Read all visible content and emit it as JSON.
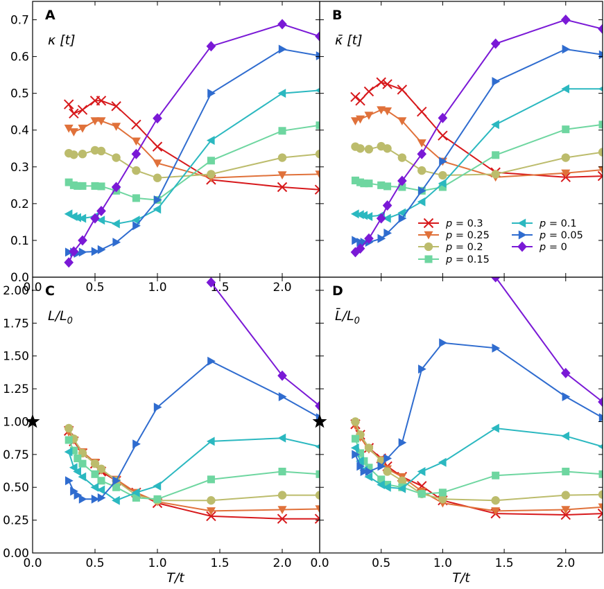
{
  "figure": {
    "xlabel": "T/t",
    "legend": {
      "placement": "lower-right of panel B",
      "entries": [
        "p = 0.3",
        "p = 0.25",
        "p = 0.2",
        "p = 0.15",
        "p = 0.1",
        "p = 0.05",
        "p = 0"
      ]
    }
  },
  "chart_data": [
    {
      "panel": "A",
      "type": "line",
      "ylabel": "κ [t]",
      "xlim": [
        0,
        2.3
      ],
      "ylim": [
        0,
        0.75
      ],
      "xticks": [
        "0.0",
        "0.5",
        "1.0",
        "1.5",
        "2.0"
      ],
      "yticks": [
        "0.0",
        "0.1",
        "0.2",
        "0.3",
        "0.4",
        "0.5",
        "0.6",
        "0.7"
      ],
      "series": [
        {
          "name": "p = 0.3",
          "color": "#d7191c",
          "marker": "x",
          "x": [
            0.29,
            0.33,
            0.4,
            0.5,
            0.55,
            0.67,
            0.83,
            1.0,
            1.43,
            2.0,
            2.3
          ],
          "y": [
            0.47,
            0.445,
            0.455,
            0.48,
            0.48,
            0.465,
            0.415,
            0.355,
            0.265,
            0.245,
            0.238
          ]
        },
        {
          "name": "p = 0.25",
          "color": "#e0713a",
          "marker": "v",
          "x": [
            0.29,
            0.33,
            0.4,
            0.5,
            0.55,
            0.67,
            0.83,
            1.0,
            1.43,
            2.0,
            2.3
          ],
          "y": [
            0.405,
            0.395,
            0.405,
            0.425,
            0.425,
            0.41,
            0.37,
            0.31,
            0.27,
            0.278,
            0.28
          ]
        },
        {
          "name": "p = 0.2",
          "color": "#bcbc6c",
          "marker": "o",
          "x": [
            0.29,
            0.33,
            0.4,
            0.5,
            0.55,
            0.67,
            0.83,
            1.0,
            1.43,
            2.0,
            2.3
          ],
          "y": [
            0.337,
            0.333,
            0.335,
            0.345,
            0.343,
            0.325,
            0.29,
            0.27,
            0.28,
            0.325,
            0.335
          ]
        },
        {
          "name": "p = 0.15",
          "color": "#6ed6a0",
          "marker": "s",
          "x": [
            0.29,
            0.33,
            0.36,
            0.4,
            0.5,
            0.55,
            0.67,
            0.83,
            1.0,
            1.43,
            2.0,
            2.3
          ],
          "y": [
            0.258,
            0.25,
            0.248,
            0.248,
            0.248,
            0.247,
            0.235,
            0.215,
            0.21,
            0.317,
            0.398,
            0.413
          ]
        },
        {
          "name": "p = 0.1",
          "color": "#2bb8c0",
          "marker": "<",
          "x": [
            0.29,
            0.33,
            0.36,
            0.4,
            0.5,
            0.55,
            0.67,
            0.83,
            1.0,
            1.43,
            2.0,
            2.3
          ],
          "y": [
            0.172,
            0.165,
            0.162,
            0.16,
            0.165,
            0.155,
            0.145,
            0.155,
            0.185,
            0.372,
            0.5,
            0.508
          ]
        },
        {
          "name": "p = 0.05",
          "color": "#2f6ccf",
          "marker": ">",
          "x": [
            0.29,
            0.33,
            0.36,
            0.4,
            0.5,
            0.55,
            0.67,
            0.83,
            1.0,
            1.43,
            2.0,
            2.3
          ],
          "y": [
            0.068,
            0.068,
            0.065,
            0.068,
            0.07,
            0.075,
            0.095,
            0.14,
            0.21,
            0.5,
            0.62,
            0.602
          ]
        },
        {
          "name": "p = 0",
          "color": "#7a19d6",
          "marker": "D",
          "x": [
            0.29,
            0.33,
            0.4,
            0.5,
            0.55,
            0.67,
            0.83,
            1.0,
            1.43,
            2.0,
            2.3
          ],
          "y": [
            0.04,
            0.07,
            0.1,
            0.16,
            0.18,
            0.245,
            0.335,
            0.432,
            0.628,
            0.688,
            0.655
          ]
        }
      ]
    },
    {
      "panel": "B",
      "type": "line",
      "ylabel": "κ̄ [t]",
      "xlim": [
        0,
        2.3
      ],
      "ylim": [
        0,
        0.75
      ],
      "xticks": [],
      "yticks": [],
      "series": [
        {
          "name": "p = 0.3",
          "color": "#d7191c",
          "marker": "x",
          "x": [
            0.29,
            0.33,
            0.4,
            0.5,
            0.55,
            0.67,
            0.83,
            1.0,
            1.43,
            2.0,
            2.3
          ],
          "y": [
            0.49,
            0.48,
            0.505,
            0.53,
            0.525,
            0.51,
            0.45,
            0.385,
            0.285,
            0.272,
            0.275
          ]
        },
        {
          "name": "p = 0.25",
          "color": "#e0713a",
          "marker": "v",
          "x": [
            0.29,
            0.33,
            0.4,
            0.5,
            0.55,
            0.67,
            0.83,
            1.0,
            1.43,
            2.0,
            2.3
          ],
          "y": [
            0.425,
            0.43,
            0.44,
            0.455,
            0.452,
            0.425,
            0.365,
            0.315,
            0.272,
            0.283,
            0.292
          ]
        },
        {
          "name": "p = 0.2",
          "color": "#bcbc6c",
          "marker": "o",
          "x": [
            0.29,
            0.33,
            0.4,
            0.5,
            0.55,
            0.67,
            0.83,
            1.0,
            1.43,
            2.0,
            2.3
          ],
          "y": [
            0.355,
            0.35,
            0.348,
            0.356,
            0.35,
            0.325,
            0.29,
            0.277,
            0.28,
            0.325,
            0.34
          ]
        },
        {
          "name": "p = 0.15",
          "color": "#6ed6a0",
          "marker": "s",
          "x": [
            0.29,
            0.33,
            0.36,
            0.4,
            0.5,
            0.55,
            0.67,
            0.83,
            1.0,
            1.43,
            2.0,
            2.3
          ],
          "y": [
            0.263,
            0.258,
            0.255,
            0.255,
            0.25,
            0.247,
            0.245,
            0.235,
            0.245,
            0.332,
            0.402,
            0.415
          ]
        },
        {
          "name": "p = 0.1",
          "color": "#2bb8c0",
          "marker": "<",
          "x": [
            0.29,
            0.33,
            0.36,
            0.4,
            0.5,
            0.55,
            0.67,
            0.83,
            1.0,
            1.43,
            2.0,
            2.3
          ],
          "y": [
            0.172,
            0.17,
            0.168,
            0.165,
            0.168,
            0.16,
            0.175,
            0.205,
            0.255,
            0.415,
            0.512,
            0.512
          ]
        },
        {
          "name": "p = 0.05",
          "color": "#2f6ccf",
          "marker": ">",
          "x": [
            0.29,
            0.33,
            0.36,
            0.4,
            0.5,
            0.55,
            0.67,
            0.83,
            1.0,
            1.43,
            2.0,
            2.3
          ],
          "y": [
            0.1,
            0.095,
            0.095,
            0.095,
            0.105,
            0.12,
            0.16,
            0.235,
            0.315,
            0.532,
            0.62,
            0.605
          ]
        },
        {
          "name": "p = 0",
          "color": "#7a19d6",
          "marker": "D",
          "x": [
            0.29,
            0.33,
            0.4,
            0.5,
            0.55,
            0.67,
            0.83,
            1.0,
            1.43,
            2.0,
            2.3
          ],
          "y": [
            0.068,
            0.078,
            0.105,
            0.16,
            0.195,
            0.262,
            0.335,
            0.433,
            0.635,
            0.7,
            0.675
          ]
        }
      ]
    },
    {
      "panel": "C",
      "type": "line",
      "ylabel": "L/L0",
      "xlim": [
        0,
        2.3
      ],
      "ylim": [
        0,
        2.1
      ],
      "xticks": [
        "0.0",
        "0.5",
        "1.0",
        "1.5",
        "2.0"
      ],
      "yticks": [
        "0.00",
        "0.25",
        "0.50",
        "0.75",
        "1.00",
        "1.25",
        "1.50",
        "1.75",
        "2.00"
      ],
      "reference_point": {
        "x": 0,
        "y": 1.0,
        "marker": "star"
      },
      "series": [
        {
          "name": "p = 0.3",
          "color": "#d7191c",
          "marker": "x",
          "x": [
            0.29,
            0.33,
            0.4,
            0.5,
            0.55,
            0.67,
            0.83,
            1.0,
            1.43,
            2.0,
            2.3
          ],
          "y": [
            0.93,
            0.85,
            0.76,
            0.68,
            0.62,
            0.55,
            0.46,
            0.38,
            0.28,
            0.26,
            0.26
          ]
        },
        {
          "name": "p = 0.25",
          "color": "#e0713a",
          "marker": "v",
          "x": [
            0.29,
            0.33,
            0.4,
            0.5,
            0.55,
            0.67,
            0.83,
            1.0,
            1.43,
            2.0,
            2.3
          ],
          "y": [
            0.92,
            0.86,
            0.77,
            0.69,
            0.63,
            0.56,
            0.46,
            0.39,
            0.32,
            0.33,
            0.335
          ]
        },
        {
          "name": "p = 0.2",
          "color": "#bcbc6c",
          "marker": "o",
          "x": [
            0.29,
            0.33,
            0.4,
            0.5,
            0.55,
            0.67,
            0.83,
            1.0,
            1.43,
            2.0,
            2.3
          ],
          "y": [
            0.95,
            0.87,
            0.76,
            0.68,
            0.64,
            0.55,
            0.44,
            0.4,
            0.4,
            0.44,
            0.44
          ]
        },
        {
          "name": "p = 0.15",
          "color": "#6ed6a0",
          "marker": "s",
          "x": [
            0.29,
            0.33,
            0.36,
            0.4,
            0.5,
            0.55,
            0.67,
            0.83,
            1.0,
            1.43,
            2.0,
            2.3
          ],
          "y": [
            0.86,
            0.78,
            0.72,
            0.68,
            0.6,
            0.55,
            0.5,
            0.42,
            0.41,
            0.56,
            0.62,
            0.6
          ]
        },
        {
          "name": "p = 0.1",
          "color": "#2bb8c0",
          "marker": "<",
          "x": [
            0.29,
            0.33,
            0.36,
            0.4,
            0.5,
            0.55,
            0.67,
            0.83,
            1.0,
            1.43,
            2.0,
            2.3
          ],
          "y": [
            0.77,
            0.65,
            0.62,
            0.58,
            0.5,
            0.48,
            0.4,
            0.46,
            0.51,
            0.85,
            0.875,
            0.81
          ]
        },
        {
          "name": "p = 0.05",
          "color": "#2f6ccf",
          "marker": ">",
          "x": [
            0.29,
            0.33,
            0.36,
            0.4,
            0.5,
            0.55,
            0.67,
            0.83,
            1.0,
            1.43,
            2.0,
            2.3
          ],
          "y": [
            0.55,
            0.47,
            0.44,
            0.41,
            0.41,
            0.42,
            0.55,
            0.83,
            1.11,
            1.46,
            1.19,
            1.03
          ]
        },
        {
          "name": "p = 0",
          "color": "#7a19d6",
          "marker": "D",
          "x": [
            1.43,
            2.0,
            2.3
          ],
          "y": [
            2.06,
            1.35,
            1.12
          ]
        }
      ]
    },
    {
      "panel": "D",
      "type": "line",
      "ylabel": "L̄/L0",
      "xlim": [
        0,
        2.3
      ],
      "ylim": [
        0,
        2.1
      ],
      "xticks": [
        "0.0",
        "0.5",
        "1.0",
        "1.5",
        "2.0"
      ],
      "yticks": [],
      "reference_point": {
        "x": 0,
        "y": 1.0,
        "marker": "star"
      },
      "series": [
        {
          "name": "p = 0.3",
          "color": "#d7191c",
          "marker": "x",
          "x": [
            0.29,
            0.33,
            0.4,
            0.5,
            0.55,
            0.67,
            0.83,
            1.0,
            1.43,
            2.0,
            2.3
          ],
          "y": [
            0.98,
            0.9,
            0.8,
            0.72,
            0.66,
            0.58,
            0.51,
            0.4,
            0.3,
            0.29,
            0.3
          ]
        },
        {
          "name": "p = 0.25",
          "color": "#e0713a",
          "marker": "v",
          "x": [
            0.29,
            0.33,
            0.4,
            0.5,
            0.55,
            0.67,
            0.83,
            1.0,
            1.43,
            2.0,
            2.3
          ],
          "y": [
            0.97,
            0.88,
            0.79,
            0.71,
            0.64,
            0.58,
            0.47,
            0.38,
            0.32,
            0.33,
            0.35
          ]
        },
        {
          "name": "p = 0.2",
          "color": "#bcbc6c",
          "marker": "o",
          "x": [
            0.29,
            0.33,
            0.4,
            0.5,
            0.55,
            0.67,
            0.83,
            1.0,
            1.43,
            2.0,
            2.3
          ],
          "y": [
            1.0,
            0.9,
            0.8,
            0.7,
            0.62,
            0.55,
            0.45,
            0.41,
            0.4,
            0.44,
            0.445
          ]
        },
        {
          "name": "p = 0.15",
          "color": "#6ed6a0",
          "marker": "s",
          "x": [
            0.29,
            0.33,
            0.36,
            0.4,
            0.5,
            0.55,
            0.67,
            0.83,
            1.0,
            1.43,
            2.0,
            2.3
          ],
          "y": [
            0.87,
            0.76,
            0.7,
            0.65,
            0.56,
            0.52,
            0.5,
            0.45,
            0.46,
            0.59,
            0.62,
            0.6
          ]
        },
        {
          "name": "p = 0.1",
          "color": "#2bb8c0",
          "marker": "<",
          "x": [
            0.29,
            0.33,
            0.36,
            0.4,
            0.5,
            0.55,
            0.67,
            0.83,
            1.0,
            1.43,
            2.0,
            2.3
          ],
          "y": [
            0.8,
            0.7,
            0.63,
            0.58,
            0.52,
            0.5,
            0.49,
            0.62,
            0.69,
            0.95,
            0.89,
            0.81
          ]
        },
        {
          "name": "p = 0.05",
          "color": "#2f6ccf",
          "marker": ">",
          "x": [
            0.29,
            0.33,
            0.36,
            0.4,
            0.5,
            0.55,
            0.67,
            0.83,
            1.0,
            1.43,
            2.0,
            2.3
          ],
          "y": [
            0.75,
            0.66,
            0.62,
            0.62,
            0.66,
            0.72,
            0.84,
            1.4,
            1.6,
            1.56,
            1.19,
            1.03
          ]
        },
        {
          "name": "p = 0",
          "color": "#7a19d6",
          "marker": "D",
          "x": [
            1.43,
            2.0,
            2.3
          ],
          "y": [
            2.1,
            1.37,
            1.15
          ]
        }
      ]
    }
  ]
}
